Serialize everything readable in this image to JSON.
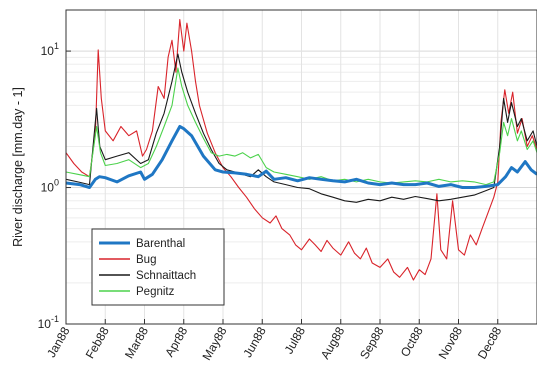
{
  "chart_data": {
    "type": "line",
    "ylabel": "River discharge [mm.day - 1]",
    "xlabel": "",
    "y_scale": "log",
    "ylim": [
      0.1,
      20
    ],
    "grid": true,
    "legend_position": "bottom-left",
    "x_tick_labels": [
      "Jan88",
      "Feb88",
      "Mar88",
      "Apr88",
      "May88",
      "Jun88",
      "Jul88",
      "Aug88",
      "Sep88",
      "Oct88",
      "Nov88",
      "Dec88"
    ],
    "y_ticks": [
      {
        "value": 0.1,
        "base": "10",
        "exp": "-1"
      },
      {
        "value": 1,
        "base": "10",
        "exp": "0"
      },
      {
        "value": 10,
        "base": "10",
        "exp": "1"
      }
    ],
    "x_unit": "month (1988)",
    "series": [
      {
        "name": "Barenthal",
        "color": "#1f77c4",
        "width": 3,
        "points": [
          [
            0,
            1.08
          ],
          [
            0.35,
            1.05
          ],
          [
            0.6,
            1.0
          ],
          [
            0.75,
            1.15
          ],
          [
            0.85,
            1.2
          ],
          [
            1.0,
            1.18
          ],
          [
            1.3,
            1.1
          ],
          [
            1.6,
            1.22
          ],
          [
            1.9,
            1.3
          ],
          [
            2.0,
            1.15
          ],
          [
            2.2,
            1.25
          ],
          [
            2.45,
            1.6
          ],
          [
            2.7,
            2.2
          ],
          [
            2.9,
            2.8
          ],
          [
            3.0,
            2.7
          ],
          [
            3.2,
            2.4
          ],
          [
            3.5,
            1.7
          ],
          [
            3.8,
            1.35
          ],
          [
            4.0,
            1.3
          ],
          [
            4.3,
            1.28
          ],
          [
            4.6,
            1.25
          ],
          [
            4.9,
            1.2
          ],
          [
            5.1,
            1.32
          ],
          [
            5.3,
            1.15
          ],
          [
            5.6,
            1.18
          ],
          [
            5.9,
            1.12
          ],
          [
            6.2,
            1.18
          ],
          [
            6.5,
            1.15
          ],
          [
            6.8,
            1.12
          ],
          [
            7.1,
            1.1
          ],
          [
            7.4,
            1.15
          ],
          [
            7.7,
            1.08
          ],
          [
            8.0,
            1.05
          ],
          [
            8.3,
            1.08
          ],
          [
            8.6,
            1.05
          ],
          [
            8.9,
            1.05
          ],
          [
            9.2,
            1.08
          ],
          [
            9.5,
            1.02
          ],
          [
            9.8,
            1.05
          ],
          [
            10.1,
            1.0
          ],
          [
            10.4,
            1.0
          ],
          [
            10.7,
            1.02
          ],
          [
            11.0,
            1.05
          ],
          [
            11.2,
            1.2
          ],
          [
            11.35,
            1.4
          ],
          [
            11.5,
            1.3
          ],
          [
            11.7,
            1.55
          ],
          [
            11.85,
            1.35
          ],
          [
            12.0,
            1.25
          ]
        ]
      },
      {
        "name": "Bug",
        "color": "#d9242b",
        "width": 1.1,
        "points": [
          [
            0,
            1.8
          ],
          [
            0.2,
            1.5
          ],
          [
            0.4,
            1.3
          ],
          [
            0.6,
            1.2
          ],
          [
            0.75,
            2.5
          ],
          [
            0.82,
            10.2
          ],
          [
            0.9,
            4.5
          ],
          [
            1.0,
            2.6
          ],
          [
            1.2,
            2.2
          ],
          [
            1.4,
            2.8
          ],
          [
            1.6,
            2.4
          ],
          [
            1.8,
            2.6
          ],
          [
            1.95,
            1.7
          ],
          [
            2.05,
            1.9
          ],
          [
            2.2,
            2.6
          ],
          [
            2.35,
            5.5
          ],
          [
            2.5,
            4.5
          ],
          [
            2.6,
            9.0
          ],
          [
            2.7,
            12.0
          ],
          [
            2.8,
            7.0
          ],
          [
            2.9,
            17.0
          ],
          [
            3.0,
            10.0
          ],
          [
            3.08,
            16.0
          ],
          [
            3.2,
            10.0
          ],
          [
            3.3,
            6.0
          ],
          [
            3.4,
            4.0
          ],
          [
            3.6,
            2.5
          ],
          [
            3.8,
            1.8
          ],
          [
            4.0,
            1.4
          ],
          [
            4.2,
            1.2
          ],
          [
            4.4,
            1.0
          ],
          [
            4.6,
            0.85
          ],
          [
            4.8,
            0.7
          ],
          [
            5.0,
            0.6
          ],
          [
            5.2,
            0.55
          ],
          [
            5.35,
            0.62
          ],
          [
            5.5,
            0.5
          ],
          [
            5.7,
            0.45
          ],
          [
            5.85,
            0.38
          ],
          [
            6.0,
            0.35
          ],
          [
            6.2,
            0.42
          ],
          [
            6.35,
            0.38
          ],
          [
            6.5,
            0.34
          ],
          [
            6.65,
            0.41
          ],
          [
            6.8,
            0.36
          ],
          [
            7.0,
            0.32
          ],
          [
            7.2,
            0.4
          ],
          [
            7.35,
            0.33
          ],
          [
            7.5,
            0.3
          ],
          [
            7.65,
            0.36
          ],
          [
            7.8,
            0.28
          ],
          [
            8.0,
            0.26
          ],
          [
            8.2,
            0.3
          ],
          [
            8.35,
            0.24
          ],
          [
            8.5,
            0.22
          ],
          [
            8.7,
            0.26
          ],
          [
            8.85,
            0.21
          ],
          [
            9.0,
            0.25
          ],
          [
            9.15,
            0.23
          ],
          [
            9.3,
            0.3
          ],
          [
            9.45,
            0.9
          ],
          [
            9.55,
            0.35
          ],
          [
            9.7,
            0.3
          ],
          [
            9.85,
            0.8
          ],
          [
            10.0,
            0.35
          ],
          [
            10.15,
            0.32
          ],
          [
            10.3,
            0.45
          ],
          [
            10.45,
            0.38
          ],
          [
            10.6,
            0.5
          ],
          [
            10.75,
            0.65
          ],
          [
            10.9,
            0.85
          ],
          [
            11.0,
            1.1
          ],
          [
            11.08,
            3.0
          ],
          [
            11.18,
            5.2
          ],
          [
            11.28,
            3.5
          ],
          [
            11.38,
            5.0
          ],
          [
            11.5,
            2.5
          ],
          [
            11.62,
            3.2
          ],
          [
            11.75,
            2.0
          ],
          [
            11.88,
            2.4
          ],
          [
            12.0,
            1.9
          ]
        ]
      },
      {
        "name": "Schnaittach",
        "color": "#1a1a1a",
        "width": 1.1,
        "points": [
          [
            0,
            1.15
          ],
          [
            0.3,
            1.1
          ],
          [
            0.6,
            1.05
          ],
          [
            0.78,
            3.8
          ],
          [
            0.86,
            2.0
          ],
          [
            1.0,
            1.6
          ],
          [
            1.3,
            1.7
          ],
          [
            1.6,
            1.8
          ],
          [
            1.9,
            1.5
          ],
          [
            2.1,
            1.6
          ],
          [
            2.3,
            2.5
          ],
          [
            2.5,
            3.5
          ],
          [
            2.7,
            6.0
          ],
          [
            2.85,
            9.5
          ],
          [
            2.95,
            7.0
          ],
          [
            3.1,
            5.0
          ],
          [
            3.3,
            3.5
          ],
          [
            3.5,
            2.5
          ],
          [
            3.7,
            1.9
          ],
          [
            3.9,
            1.5
          ],
          [
            4.1,
            1.35
          ],
          [
            4.3,
            1.3
          ],
          [
            4.5,
            1.25
          ],
          [
            4.7,
            1.2
          ],
          [
            4.9,
            1.35
          ],
          [
            5.1,
            1.2
          ],
          [
            5.3,
            1.1
          ],
          [
            5.6,
            1.05
          ],
          [
            5.9,
            1.0
          ],
          [
            6.2,
            0.98
          ],
          [
            6.5,
            0.9
          ],
          [
            6.8,
            0.85
          ],
          [
            7.1,
            0.8
          ],
          [
            7.4,
            0.78
          ],
          [
            7.7,
            0.82
          ],
          [
            8.0,
            0.8
          ],
          [
            8.3,
            0.85
          ],
          [
            8.6,
            0.82
          ],
          [
            8.9,
            0.86
          ],
          [
            9.2,
            0.83
          ],
          [
            9.5,
            0.8
          ],
          [
            9.8,
            0.82
          ],
          [
            10.1,
            0.85
          ],
          [
            10.4,
            0.88
          ],
          [
            10.7,
            0.95
          ],
          [
            10.9,
            1.0
          ],
          [
            11.05,
            2.0
          ],
          [
            11.15,
            4.5
          ],
          [
            11.25,
            3.0
          ],
          [
            11.35,
            4.2
          ],
          [
            11.5,
            2.8
          ],
          [
            11.6,
            3.2
          ],
          [
            11.75,
            2.2
          ],
          [
            11.9,
            2.6
          ],
          [
            12.0,
            2.0
          ]
        ]
      },
      {
        "name": "Pegnitz",
        "color": "#4cd24c",
        "width": 1.1,
        "points": [
          [
            0,
            1.3
          ],
          [
            0.3,
            1.25
          ],
          [
            0.6,
            1.2
          ],
          [
            0.78,
            2.8
          ],
          [
            0.88,
            1.8
          ],
          [
            1.0,
            1.45
          ],
          [
            1.3,
            1.5
          ],
          [
            1.6,
            1.6
          ],
          [
            1.9,
            1.4
          ],
          [
            2.1,
            1.5
          ],
          [
            2.3,
            2.0
          ],
          [
            2.5,
            2.8
          ],
          [
            2.7,
            4.0
          ],
          [
            2.85,
            7.5
          ],
          [
            2.95,
            5.5
          ],
          [
            3.1,
            4.0
          ],
          [
            3.3,
            3.0
          ],
          [
            3.5,
            2.3
          ],
          [
            3.7,
            1.8
          ],
          [
            3.9,
            1.7
          ],
          [
            4.1,
            1.75
          ],
          [
            4.3,
            1.7
          ],
          [
            4.5,
            1.8
          ],
          [
            4.7,
            1.65
          ],
          [
            4.9,
            1.75
          ],
          [
            5.1,
            1.4
          ],
          [
            5.3,
            1.3
          ],
          [
            5.6,
            1.25
          ],
          [
            5.9,
            1.2
          ],
          [
            6.2,
            1.15
          ],
          [
            6.5,
            1.2
          ],
          [
            6.8,
            1.12
          ],
          [
            7.1,
            1.15
          ],
          [
            7.4,
            1.1
          ],
          [
            7.7,
            1.15
          ],
          [
            8.0,
            1.1
          ],
          [
            8.3,
            1.08
          ],
          [
            8.6,
            1.1
          ],
          [
            8.9,
            1.12
          ],
          [
            9.2,
            1.1
          ],
          [
            9.5,
            1.15
          ],
          [
            9.8,
            1.1
          ],
          [
            10.1,
            1.12
          ],
          [
            10.4,
            1.1
          ],
          [
            10.7,
            1.05
          ],
          [
            10.9,
            1.1
          ],
          [
            11.05,
            1.8
          ],
          [
            11.15,
            3.0
          ],
          [
            11.25,
            2.4
          ],
          [
            11.35,
            3.2
          ],
          [
            11.5,
            2.2
          ],
          [
            11.6,
            2.6
          ],
          [
            11.75,
            1.9
          ],
          [
            11.9,
            2.2
          ],
          [
            12.0,
            1.8
          ]
        ]
      }
    ]
  }
}
